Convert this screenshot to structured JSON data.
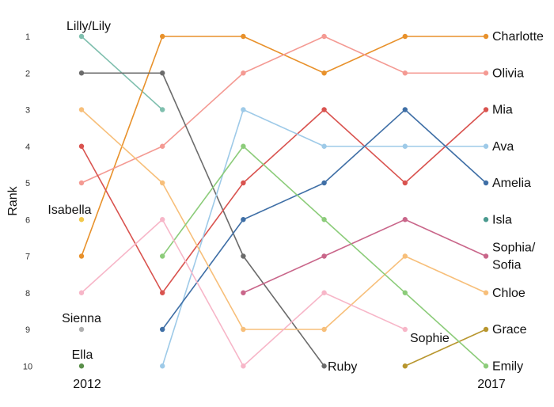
{
  "chart_data": {
    "type": "line",
    "subtype": "bump",
    "title": "",
    "xlabel": "",
    "ylabel": "Rank",
    "x": [
      2012,
      2013,
      2014,
      2015,
      2016,
      2017
    ],
    "x_tick_labels": [
      "2012",
      "",
      "",
      "",
      "",
      "2017"
    ],
    "y_ticks": [
      "1",
      "2",
      "3",
      "4",
      "5",
      "6",
      "7",
      "8",
      "9",
      "10"
    ],
    "ylim": [
      1,
      10
    ],
    "y_inverted": true,
    "grid": false,
    "legend": "none",
    "series": [
      {
        "name": "Lilly/Lily",
        "color": "#7fbfae",
        "values": [
          1,
          3,
          null,
          null,
          null,
          null
        ],
        "label_at": "start"
      },
      {
        "name": "Charlotte",
        "color": "#e8912b",
        "values": [
          7,
          1,
          1,
          2,
          1,
          1
        ],
        "label_at": "end"
      },
      {
        "name": "Olivia",
        "color": "#f49a93",
        "values": [
          5,
          4,
          2,
          1,
          2,
          2
        ],
        "label_at": "end"
      },
      {
        "name": "Ruby",
        "color": "#6b6b6b",
        "values": [
          2,
          2,
          7,
          10,
          null,
          null
        ],
        "label_at": "last"
      },
      {
        "name": "Mia",
        "color": "#d9534f",
        "values": [
          4,
          8,
          5,
          3,
          5,
          3
        ],
        "label_at": "end"
      },
      {
        "name": "Ava",
        "color": "#9ecae8",
        "values": [
          null,
          10,
          3,
          4,
          4,
          4
        ],
        "label_at": "end"
      },
      {
        "name": "Amelia",
        "color": "#3f6fa6",
        "values": [
          null,
          9,
          6,
          5,
          3,
          5
        ],
        "label_at": "end"
      },
      {
        "name": "Isla",
        "color": "#4a9a8f",
        "values": [
          null,
          null,
          null,
          null,
          null,
          6
        ],
        "label_at": "end"
      },
      {
        "name": "Sophia/\nSofia",
        "color": "#c9668a",
        "values": [
          null,
          null,
          8,
          7,
          6,
          7
        ],
        "label_at": "end"
      },
      {
        "name": "Chloe",
        "color": "#f7bf7a",
        "values": [
          3,
          5,
          9,
          9,
          7,
          8
        ],
        "label_at": "end"
      },
      {
        "name": "Grace",
        "color": "#b8962e",
        "values": [
          null,
          null,
          null,
          null,
          10,
          9
        ],
        "label_at": "end"
      },
      {
        "name": "Emily",
        "color": "#8ccc7a",
        "values": [
          null,
          7,
          4,
          6,
          8,
          10
        ],
        "label_at": "end"
      },
      {
        "name": "Isabella",
        "color": "#f2c84b",
        "values": [
          6,
          null,
          null,
          null,
          null,
          null
        ],
        "label_at": "start"
      },
      {
        "name": "Sophie",
        "color": "#f7b6c8",
        "values": [
          8,
          6,
          10,
          8,
          9,
          null
        ],
        "label_at": "last"
      },
      {
        "name": "Sienna",
        "color": "#b0b0b0",
        "values": [
          9,
          null,
          null,
          null,
          null,
          null
        ],
        "label_at": "start"
      },
      {
        "name": "Ella",
        "color": "#5a8f4a",
        "values": [
          10,
          null,
          null,
          null,
          null,
          null
        ],
        "label_at": "start"
      }
    ]
  }
}
